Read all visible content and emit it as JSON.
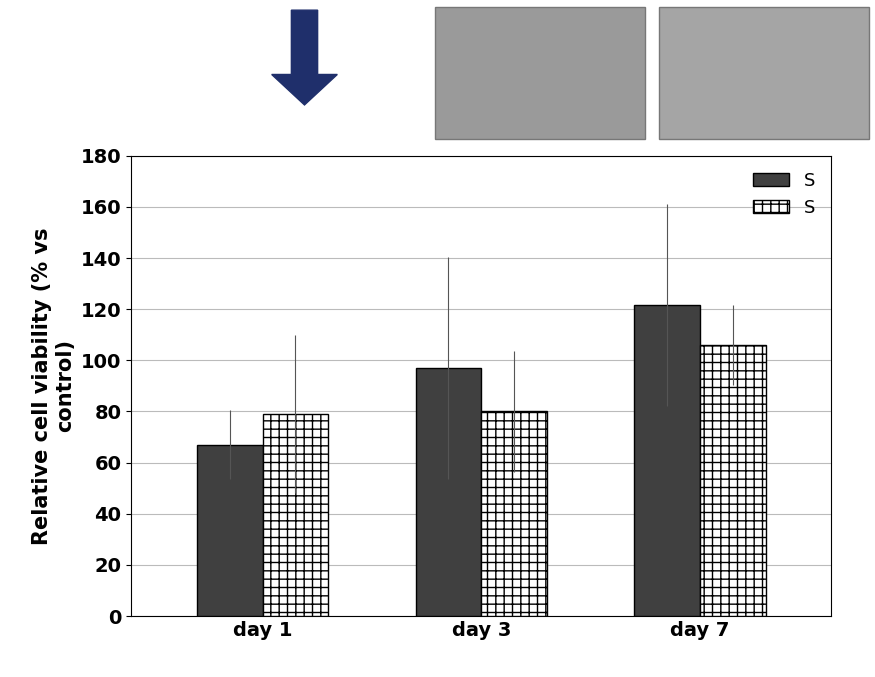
{
  "chart_data": {
    "type": "bar",
    "y_label": "Relative cell viability (% vs\ncontrol)",
    "categories": [
      "day 1",
      "day 3",
      "day 7"
    ],
    "series": [
      {
        "name": "S",
        "color": "#404040",
        "values": [
          67,
          97,
          121.5
        ],
        "errors": [
          13.5,
          43.5,
          39.5
        ]
      },
      {
        "name": "S",
        "color": "#ffffff",
        "values": [
          79,
          80,
          106
        ],
        "errors": [
          31,
          23.5,
          15.5
        ]
      }
    ],
    "ylim": [
      0,
      180
    ],
    "yticks": [
      0,
      20,
      40,
      60,
      80,
      100,
      120,
      140,
      160,
      180
    ],
    "grid": true,
    "legend": "upper right"
  }
}
